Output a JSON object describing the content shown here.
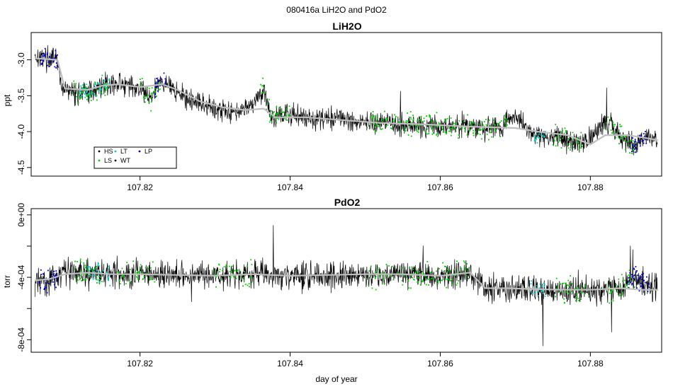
{
  "page_title": "080416a   LiH2O and PdO2",
  "colors": {
    "trace": "#000000",
    "smooth": "#bebebe",
    "HS": "#000000",
    "LS": "#00cc00",
    "LT": "#00cccc",
    "WT": "#000000",
    "LP": "#0000cc",
    "frame": "#000000"
  },
  "legend": {
    "items": [
      {
        "key": "HS",
        "label": "HS"
      },
      {
        "key": "LT",
        "label": "LT"
      },
      {
        "key": "LP",
        "label": "LP"
      },
      {
        "key": "LS",
        "label": "LS"
      },
      {
        "key": "WT",
        "label": "WT"
      }
    ]
  },
  "chart_data": [
    {
      "type": "line",
      "title": "LiH2O",
      "xlabel": "",
      "ylabel": "ppt",
      "xlim": [
        107.8055,
        107.8895
      ],
      "ylim": [
        -4.62,
        -2.62
      ],
      "x_ticks": [
        107.82,
        107.84,
        107.86,
        107.88
      ],
      "x_tick_labels": [
        "107.82",
        "107.84",
        "107.86",
        "107.88"
      ],
      "y_ticks": [
        -3.0,
        -3.5,
        -4.0,
        -4.5
      ],
      "y_tick_labels": [
        "-3.0",
        "-3.5",
        "-4.0",
        "-4.5"
      ],
      "grid": false,
      "legend_position": "bottom-left",
      "series": [
        {
          "key": "raw",
          "style": "noisy-trace",
          "noise": 0.14,
          "seed": 17,
          "x": [
            107.806,
            107.8075,
            107.809,
            107.8095,
            107.811,
            107.813,
            107.815,
            107.817,
            107.82,
            107.8215,
            107.8225,
            107.824,
            107.826,
            107.829,
            107.832,
            107.8345,
            107.8365,
            107.8375,
            107.839,
            107.842,
            107.846,
            107.85,
            107.855,
            107.86,
            107.865,
            107.868,
            107.87,
            107.872,
            107.876,
            107.879,
            107.88,
            107.882,
            107.884,
            107.886,
            107.888,
            107.889
          ],
          "y": [
            -2.95,
            -2.98,
            -3.0,
            -3.4,
            -3.45,
            -3.45,
            -3.35,
            -3.33,
            -3.4,
            -3.55,
            -3.3,
            -3.35,
            -3.55,
            -3.65,
            -3.72,
            -3.65,
            -3.42,
            -3.8,
            -3.75,
            -3.8,
            -3.82,
            -3.86,
            -3.9,
            -3.92,
            -3.95,
            -3.95,
            -3.75,
            -4.05,
            -4.08,
            -4.15,
            -4.1,
            -3.88,
            -4.05,
            -4.2,
            -4.05,
            -4.15
          ]
        },
        {
          "key": "smooth",
          "style": "smooth-line",
          "x": [
            107.806,
            107.809,
            107.81,
            107.813,
            107.815,
            107.817,
            107.82,
            107.823,
            107.825,
            107.828,
            107.831,
            107.834,
            107.8365,
            107.838,
            107.842,
            107.847,
            107.852,
            107.858,
            107.864,
            107.87,
            107.873,
            107.877,
            107.88,
            107.882,
            107.885,
            107.888,
            107.889
          ],
          "y": [
            -2.98,
            -3.0,
            -3.4,
            -3.42,
            -3.36,
            -3.34,
            -3.38,
            -3.34,
            -3.42,
            -3.58,
            -3.66,
            -3.7,
            -3.68,
            -3.8,
            -3.8,
            -3.84,
            -3.88,
            -3.9,
            -3.93,
            -3.95,
            -4.0,
            -4.05,
            -4.18,
            -4.05,
            -4.05,
            -4.1,
            -4.12
          ]
        },
        {
          "key": "LS",
          "style": "dots",
          "n": 420,
          "spread": 0.12,
          "seed": 5,
          "x_ranges": [
            [
              107.811,
              107.816
            ],
            [
              107.82,
              107.823
            ],
            [
              107.836,
              107.84
            ],
            [
              107.85,
              107.869
            ],
            [
              107.875,
              107.879
            ],
            [
              107.882,
              107.886
            ]
          ]
        },
        {
          "key": "LT",
          "style": "dots",
          "n": 70,
          "spread": 0.08,
          "seed": 9,
          "x_ranges": [
            [
              107.812,
              107.816
            ],
            [
              107.8725,
              107.874
            ]
          ]
        },
        {
          "key": "LP",
          "style": "dots",
          "n": 90,
          "spread": 0.09,
          "seed": 13,
          "x_ranges": [
            [
              107.8065,
              107.809
            ],
            [
              107.822,
              107.8235
            ],
            [
              107.8855,
              107.8875
            ]
          ]
        }
      ]
    },
    {
      "type": "line",
      "title": "PdO2",
      "xlabel": "day of year",
      "ylabel": "torr",
      "xlim": [
        107.8055,
        107.8895
      ],
      "ylim": [
        -0.00088,
        4e-05
      ],
      "x_ticks": [
        107.82,
        107.84,
        107.86,
        107.88
      ],
      "x_tick_labels": [
        "107.82",
        "107.84",
        "107.86",
        "107.88"
      ],
      "y_ticks": [
        0.0,
        -0.0002,
        -0.0004,
        -0.0006,
        -0.0008
      ],
      "y_tick_labels": [
        "0e+00",
        "",
        "-4e-04",
        "",
        "-8e-04"
      ],
      "grid": false,
      "series": [
        {
          "key": "raw",
          "style": "noisy-trace",
          "noise": 8e-05,
          "seed": 31,
          "x": [
            107.806,
            107.808,
            107.81,
            107.813,
            107.816,
            107.82,
            107.825,
            107.83,
            107.835,
            107.84,
            107.845,
            107.85,
            107.855,
            107.86,
            107.864,
            107.866,
            107.868,
            107.872,
            107.876,
            107.88,
            107.884,
            107.886,
            107.888,
            107.889
          ],
          "y": [
            -0.00043,
            -0.00042,
            -0.00037,
            -0.00036,
            -0.00038,
            -0.00038,
            -0.00038,
            -0.00039,
            -0.00038,
            -0.00039,
            -0.00039,
            -0.00039,
            -0.00038,
            -0.00039,
            -0.00037,
            -0.00048,
            -0.00047,
            -0.00047,
            -0.00049,
            -0.00048,
            -0.00047,
            -0.0004,
            -0.00047,
            -0.00045
          ]
        },
        {
          "key": "smooth",
          "style": "smooth-line",
          "x": [
            107.806,
            107.808,
            107.81,
            107.813,
            107.816,
            107.82,
            107.825,
            107.83,
            107.835,
            107.84,
            107.845,
            107.85,
            107.855,
            107.86,
            107.864,
            107.866,
            107.869,
            107.872,
            107.876,
            107.88,
            107.884,
            107.887,
            107.889
          ],
          "y": [
            -0.00042,
            -0.00041,
            -0.00038,
            -0.00037,
            -0.00038,
            -0.00038,
            -0.000385,
            -0.00039,
            -0.00038,
            -0.00039,
            -0.000385,
            -0.00038,
            -0.00038,
            -0.00039,
            -0.00037,
            -0.00047,
            -0.00047,
            -0.000475,
            -0.00048,
            -0.00048,
            -0.00047,
            -0.00048,
            -0.00048
          ]
        },
        {
          "key": "LS",
          "style": "dots",
          "n": 360,
          "spread": 6e-05,
          "seed": 21,
          "x_ranges": [
            [
              107.811,
              107.816
            ],
            [
              107.817,
              107.822
            ],
            [
              107.83,
              107.835
            ],
            [
              107.85,
              107.864
            ],
            [
              107.875,
              107.88
            ],
            [
              107.882,
              107.886
            ]
          ]
        },
        {
          "key": "LT",
          "style": "dots",
          "n": 60,
          "spread": 5e-05,
          "seed": 23,
          "x_ranges": [
            [
              107.813,
              107.816
            ],
            [
              107.872,
              107.874
            ]
          ]
        },
        {
          "key": "LP",
          "style": "dots",
          "n": 80,
          "spread": 5e-05,
          "seed": 29,
          "x_ranges": [
            [
              107.8065,
              107.809
            ],
            [
              107.885,
              107.888
            ]
          ]
        }
      ]
    }
  ]
}
